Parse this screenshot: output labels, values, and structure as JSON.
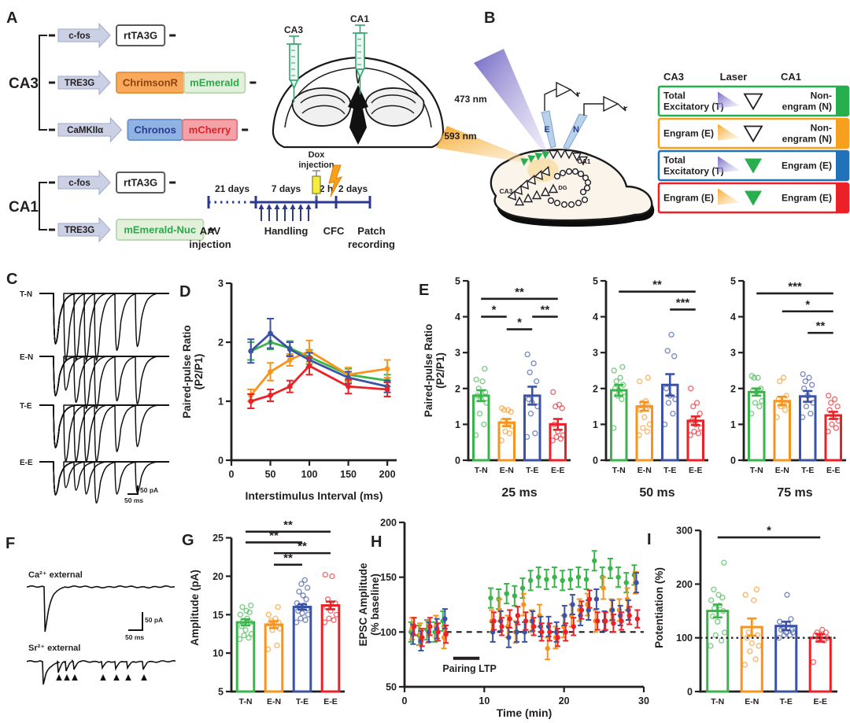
{
  "colors": {
    "green": "#3AB54A",
    "orange": "#F7941D",
    "blue": "#3A53A4",
    "red": "#EC2127",
    "legend_green": "#27AE4F",
    "legend_orange": "#F7A01D",
    "legend_blue": "#2272B9",
    "legend_red": "#EC2127",
    "timeline_blue": "#2B3990",
    "laser_purple": "#6A5FC0",
    "laser_orange": "#F6A21E",
    "syringe_green": "#2FA46F",
    "dox_yellow": "#F7EC3E",
    "bolt_orange": "#F9A11B"
  },
  "panels": {
    "a": "A",
    "b": "B",
    "c": "C",
    "d": "D",
    "e": "E",
    "f": "F",
    "g": "G",
    "h": "H",
    "i": "I"
  },
  "panel_a": {
    "ca3_label": "CA3",
    "ca1_label": "CA1",
    "constructs_ca3": [
      {
        "promoter": "c-fos",
        "genes": [
          {
            "name": "rtTA3G",
            "fill": "#FFFFFF",
            "stroke": "#58595B",
            "text": "#231F20"
          }
        ]
      },
      {
        "promoter": "TRE3G",
        "genes": [
          {
            "name": "ChrimsonR",
            "fill": "#F9A85C",
            "stroke": "#E8943B",
            "text": "#8A4511"
          },
          {
            "name": "mEmerald",
            "fill": "#E3F0DB",
            "stroke": "#BCD9B0",
            "text": "#2BA84A"
          }
        ]
      },
      {
        "promoter": "CaMKIIα",
        "genes": [
          {
            "name": "Chronos",
            "fill": "#8FB4E3",
            "stroke": "#6D96CC",
            "text": "#2B3990"
          },
          {
            "name": "mCherry",
            "fill": "#F3A3A8",
            "stroke": "#E0777E",
            "text": "#E01F26"
          }
        ]
      }
    ],
    "constructs_ca1": [
      {
        "promoter": "c-fos",
        "genes": [
          {
            "name": "rtTA3G",
            "fill": "#FFFFFF",
            "stroke": "#58595B",
            "text": "#231F20"
          }
        ]
      },
      {
        "promoter": "TRE3G",
        "genes": [
          {
            "name": "mEmerald-Nuc",
            "fill": "#E3F0DB",
            "stroke": "#BCD9B0",
            "text": "#2BA84A"
          }
        ]
      }
    ],
    "injection_labels": {
      "ca3": "CA3",
      "ca1": "CA1"
    },
    "timeline": {
      "segments": [
        {
          "label": "21 days",
          "style": "dotted"
        },
        {
          "label": "7 days",
          "style": "solid"
        },
        {
          "label": "2 h",
          "style": "solid"
        },
        {
          "label": "2 days",
          "style": "solid"
        }
      ],
      "events": [
        [
          "AAV",
          "injection"
        ],
        [
          "Handling"
        ],
        [
          "CFC"
        ],
        [
          "Patch",
          "recording"
        ]
      ],
      "dox_label": [
        "Dox",
        "injection"
      ],
      "handling_arrow_count": 7
    }
  },
  "panel_b": {
    "laser_473": "473 nm",
    "laser_593": "593 nm",
    "electrode_e": "E",
    "electrode_n": "N",
    "regions": {
      "ca3": "CA3",
      "ca1": "CA1",
      "dg": "DG"
    },
    "legend": {
      "headers": [
        "CA3",
        "Laser",
        "CA1"
      ],
      "rows": [
        {
          "ca3": [
            "Total",
            "Excitatory (T)"
          ],
          "laser": "purple",
          "target": "open",
          "ca1": [
            "Non-",
            "engram (N)"
          ],
          "color": "#27AE4F"
        },
        {
          "ca3": [
            "Engram (E)"
          ],
          "laser": "orange",
          "target": "open",
          "ca1": [
            "Non-",
            "engram (N)"
          ],
          "color": "#F7A01D"
        },
        {
          "ca3": [
            "Total",
            "Excitatory (T)"
          ],
          "laser": "purple",
          "target": "green",
          "ca1": [
            "Engram (E)"
          ],
          "color": "#2272B9"
        },
        {
          "ca3": [
            "Engram (E)"
          ],
          "laser": "orange",
          "target": "green",
          "ca1": [
            "Engram (E)"
          ],
          "color": "#EC2127"
        }
      ]
    }
  },
  "panel_c": {
    "traces": [
      "T-N",
      "E-N",
      "T-E",
      "E-E"
    ],
    "intervals_ms": [
      25,
      50,
      75,
      100,
      150,
      200
    ],
    "scale_v": "50 pA",
    "scale_h": "50 ms"
  },
  "panel_f": {
    "trace1": "Ca²⁺ external",
    "trace2": "Sr²⁺ external",
    "scale_v": "50 pA",
    "scale_h": "50 ms"
  },
  "chart_data": [
    {
      "id": "d",
      "type": "line",
      "title": "",
      "xlabel": "Interstimulus Interval (ms)",
      "ylabel_lines": [
        "Paired-pulse Ratio",
        "(P2/P1)"
      ],
      "xlim": [
        0,
        212
      ],
      "xticks": [
        0,
        50,
        100,
        150,
        200
      ],
      "ylim": [
        0,
        3
      ],
      "yticks": [
        0,
        1,
        2,
        3
      ],
      "x": [
        25,
        50,
        75,
        100,
        150,
        200
      ],
      "series": [
        {
          "name": "T-N",
          "color": "#3AB54A",
          "values": [
            1.85,
            2.0,
            1.9,
            1.75,
            1.45,
            1.35
          ],
          "err": [
            0.15,
            0.12,
            0.12,
            0.12,
            0.1,
            0.1
          ]
        },
        {
          "name": "E-N",
          "color": "#F7941D",
          "values": [
            1.1,
            1.5,
            1.7,
            1.85,
            1.45,
            1.55
          ],
          "err": [
            0.1,
            0.15,
            0.1,
            0.18,
            0.12,
            0.15
          ]
        },
        {
          "name": "T-E",
          "color": "#3A53A4",
          "values": [
            1.85,
            2.15,
            1.88,
            1.7,
            1.4,
            1.25
          ],
          "err": [
            0.2,
            0.25,
            0.12,
            0.12,
            0.1,
            0.1
          ]
        },
        {
          "name": "E-E",
          "color": "#EC2127",
          "values": [
            1.0,
            1.1,
            1.25,
            1.6,
            1.25,
            1.2
          ],
          "err": [
            0.12,
            0.1,
            0.1,
            0.15,
            0.12,
            0.12
          ]
        }
      ]
    },
    {
      "id": "e25",
      "type": "bar",
      "title": "25 ms",
      "ylabel_lines": [
        "Paired-pulse Ratio",
        "(P2/P1)"
      ],
      "ylim": [
        0,
        5
      ],
      "yticks": [
        0,
        1,
        2,
        3,
        4,
        5
      ],
      "categories": [
        "T-N",
        "E-N",
        "T-E",
        "E-E"
      ],
      "colors": [
        "#3AB54A",
        "#F7941D",
        "#3A53A4",
        "#EC2127"
      ],
      "values": [
        1.8,
        1.05,
        1.8,
        1.0
      ],
      "errors": [
        0.15,
        0.1,
        0.25,
        0.15
      ],
      "points": [
        [
          0.7,
          1.0,
          1.3,
          1.6,
          1.7,
          1.8,
          1.9,
          2.0,
          2.2,
          2.25,
          2.55
        ],
        [
          0.55,
          0.75,
          0.8,
          0.95,
          1.0,
          1.1,
          1.35,
          1.4,
          1.4,
          1.45
        ],
        [
          0.65,
          0.75,
          1.3,
          1.5,
          1.6,
          1.7,
          2.2,
          2.45,
          2.7,
          2.95
        ],
        [
          0.55,
          0.6,
          0.65,
          0.7,
          0.8,
          1.0,
          1.45,
          1.5,
          1.55,
          1.9
        ]
      ],
      "sig": [
        {
          "from": 0,
          "to": 3,
          "y": 4.5,
          "label": "**"
        },
        {
          "from": 0,
          "to": 1,
          "y": 4.0,
          "label": "*"
        },
        {
          "from": 2,
          "to": 3,
          "y": 4.0,
          "label": "**"
        },
        {
          "from": 1,
          "to": 2,
          "y": 3.65,
          "label": "*"
        }
      ]
    },
    {
      "id": "e50",
      "type": "bar",
      "title": "50 ms",
      "ylim": [
        0,
        5
      ],
      "yticks": [
        0,
        1,
        2,
        3,
        4,
        5
      ],
      "categories": [
        "T-N",
        "E-N",
        "T-E",
        "E-E"
      ],
      "colors": [
        "#3AB54A",
        "#F7941D",
        "#3A53A4",
        "#EC2127"
      ],
      "values": [
        1.95,
        1.5,
        2.1,
        1.1
      ],
      "errors": [
        0.15,
        0.12,
        0.3,
        0.12
      ],
      "points": [
        [
          0.9,
          1.7,
          1.8,
          1.9,
          1.95,
          2.0,
          2.1,
          2.2,
          2.3,
          2.5,
          2.6
        ],
        [
          0.7,
          0.8,
          0.9,
          1.0,
          1.2,
          1.4,
          1.5,
          1.6,
          1.65,
          2.2,
          2.3
        ],
        [
          1.0,
          1.3,
          1.6,
          1.7,
          1.8,
          2.0,
          2.9,
          3.05,
          3.5
        ],
        [
          0.7,
          0.75,
          0.8,
          0.9,
          1.0,
          1.1,
          1.3,
          1.5,
          1.6,
          2.0
        ]
      ],
      "sig": [
        {
          "from": 0,
          "to": 3,
          "y": 4.7,
          "label": "**"
        },
        {
          "from": 2,
          "to": 3,
          "y": 4.2,
          "label": "***"
        }
      ]
    },
    {
      "id": "e75",
      "type": "bar",
      "title": "75 ms",
      "ylim": [
        0,
        5
      ],
      "yticks": [
        0,
        1,
        2,
        3,
        4,
        5
      ],
      "categories": [
        "T-N",
        "E-N",
        "T-E",
        "E-E"
      ],
      "colors": [
        "#3AB54A",
        "#F7941D",
        "#3A53A4",
        "#EC2127"
      ],
      "values": [
        1.9,
        1.65,
        1.78,
        1.25
      ],
      "errors": [
        0.1,
        0.12,
        0.15,
        0.1
      ],
      "points": [
        [
          1.3,
          1.5,
          1.6,
          1.65,
          1.9,
          1.95,
          2.0,
          2.3,
          2.3,
          2.35
        ],
        [
          1.2,
          1.4,
          1.5,
          1.55,
          1.6,
          1.7,
          1.8,
          2.2,
          2.3
        ],
        [
          1.2,
          1.3,
          1.5,
          1.6,
          1.8,
          2.0,
          2.1,
          2.2,
          2.3,
          2.4
        ],
        [
          0.8,
          0.9,
          1.0,
          1.1,
          1.2,
          1.4,
          1.5,
          1.6,
          1.7,
          1.8
        ]
      ],
      "sig": [
        {
          "from": 0,
          "to": 3,
          "y": 4.65,
          "label": "***"
        },
        {
          "from": 1,
          "to": 3,
          "y": 4.15,
          "label": "*"
        },
        {
          "from": 2,
          "to": 3,
          "y": 3.55,
          "label": "**"
        }
      ]
    },
    {
      "id": "g",
      "type": "bar",
      "title": "",
      "ylabel_lines": [
        "Amplitude (pA)"
      ],
      "ylim": [
        5,
        26.8
      ],
      "yticks": [
        5,
        10,
        15,
        20,
        25
      ],
      "categories": [
        "T-N",
        "E-N",
        "T-E",
        "E-E"
      ],
      "colors": [
        "#3AB54A",
        "#F7941D",
        "#3A53A4",
        "#EC2127"
      ],
      "values": [
        14,
        13.7,
        16,
        16.2
      ],
      "errors": [
        0.4,
        0.45,
        0.35,
        0.5
      ],
      "points": [
        [
          11.8,
          12,
          12.3,
          12.5,
          13,
          13.5,
          14,
          14.2,
          14.5,
          15,
          15.3,
          15.5,
          16,
          16.2
        ],
        [
          10.5,
          11,
          13,
          13.2,
          13.5,
          13.8,
          14,
          14.2,
          14.5,
          15,
          16
        ],
        [
          14,
          14.3,
          14.5,
          15,
          15.2,
          15.5,
          15.8,
          16,
          16.2,
          16.5,
          17,
          17.5,
          18,
          18.5,
          19,
          19.5
        ],
        [
          14,
          14.3,
          14.5,
          15,
          15.5,
          16,
          16.5,
          17,
          20,
          20.2
        ]
      ],
      "sig": [
        {
          "from": 0,
          "to": 3,
          "y": 25.8,
          "label": "**"
        },
        {
          "from": 0,
          "to": 2,
          "y": 24.4,
          "label": "**"
        },
        {
          "from": 1,
          "to": 3,
          "y": 23.0,
          "label": "**"
        },
        {
          "from": 1,
          "to": 2,
          "y": 21.5,
          "label": "**"
        }
      ]
    },
    {
      "id": "h",
      "type": "scatter",
      "title": "",
      "xlabel": "Time (min)",
      "ylabel_lines": [
        "EPSC Amplitude",
        "(% baseline)"
      ],
      "xlim": [
        0,
        30
      ],
      "xticks": [
        0,
        10,
        20,
        30
      ],
      "ylim": [
        50,
        200
      ],
      "yticks": [
        50,
        100,
        150,
        200
      ],
      "refline": {
        "y": 100,
        "style": "dashed",
        "x1": 5.2,
        "x2": 30
      },
      "annotation": {
        "label": "Pairing LTP",
        "x1": 6.1,
        "x2": 9.4,
        "y": 76
      },
      "x": [
        1,
        2,
        3,
        4,
        5,
        11,
        12,
        13,
        14,
        15,
        16,
        17,
        18,
        19,
        20,
        21,
        22,
        23,
        24,
        25,
        26,
        27,
        28,
        29
      ],
      "series": [
        {
          "name": "T-N",
          "color": "#3AB54A",
          "err": 9,
          "values": [
            100,
            97,
            102,
            100,
            110,
            131,
            130,
            135,
            133,
            140,
            147,
            150,
            148,
            150,
            147,
            148,
            150,
            148,
            165,
            150,
            158,
            150,
            145,
            152
          ]
        },
        {
          "name": "E-N",
          "color": "#F7941D",
          "err": 10,
          "values": [
            103,
            98,
            100,
            105,
            95,
            110,
            120,
            105,
            100,
            125,
            110,
            115,
            85,
            95,
            105,
            115,
            120,
            125,
            110,
            140,
            120,
            120,
            130,
            145
          ]
        },
        {
          "name": "T-E",
          "color": "#3A53A4",
          "err": 9,
          "values": [
            98,
            92,
            100,
            103,
            112,
            100,
            110,
            95,
            100,
            100,
            110,
            105,
            105,
            100,
            115,
            125,
            115,
            120,
            130,
            110,
            120,
            115,
            120,
            145
          ]
        },
        {
          "name": "E-E",
          "color": "#EC2127",
          "err": 8,
          "values": [
            105,
            95,
            105,
            100,
            98,
            110,
            105,
            112,
            115,
            110,
            105,
            100,
            100,
            95,
            100,
            105,
            120,
            130,
            110,
            110,
            108,
            110,
            115,
            112
          ]
        }
      ]
    },
    {
      "id": "i",
      "type": "bar",
      "title": "",
      "ylabel_lines": [
        "Potentiation (%)"
      ],
      "ylim": [
        0,
        312
      ],
      "yticks": [
        0,
        100,
        200,
        300
      ],
      "categories": [
        "T-N",
        "E-N",
        "T-E",
        "E-E"
      ],
      "colors": [
        "#3AB54A",
        "#F7941D",
        "#3A53A4",
        "#EC2127"
      ],
      "values": [
        150,
        120,
        122,
        100
      ],
      "errors": [
        12,
        16,
        8,
        7
      ],
      "refline": {
        "y": 100,
        "style": "dotted"
      },
      "points": [
        [
          85,
          95,
          105,
          110,
          130,
          140,
          150,
          155,
          160,
          170,
          175,
          180,
          190,
          240
        ],
        [
          50,
          60,
          75,
          85,
          90,
          100,
          105,
          110,
          170,
          180,
          190
        ],
        [
          100,
          105,
          105,
          110,
          110,
          115,
          115,
          120,
          125,
          130,
          135,
          180
        ],
        [
          55,
          95,
          100,
          100,
          105,
          105,
          110,
          110,
          115
        ]
      ],
      "sig": [
        {
          "from": 0,
          "to": 3,
          "y": 287,
          "label": "*"
        }
      ]
    }
  ]
}
